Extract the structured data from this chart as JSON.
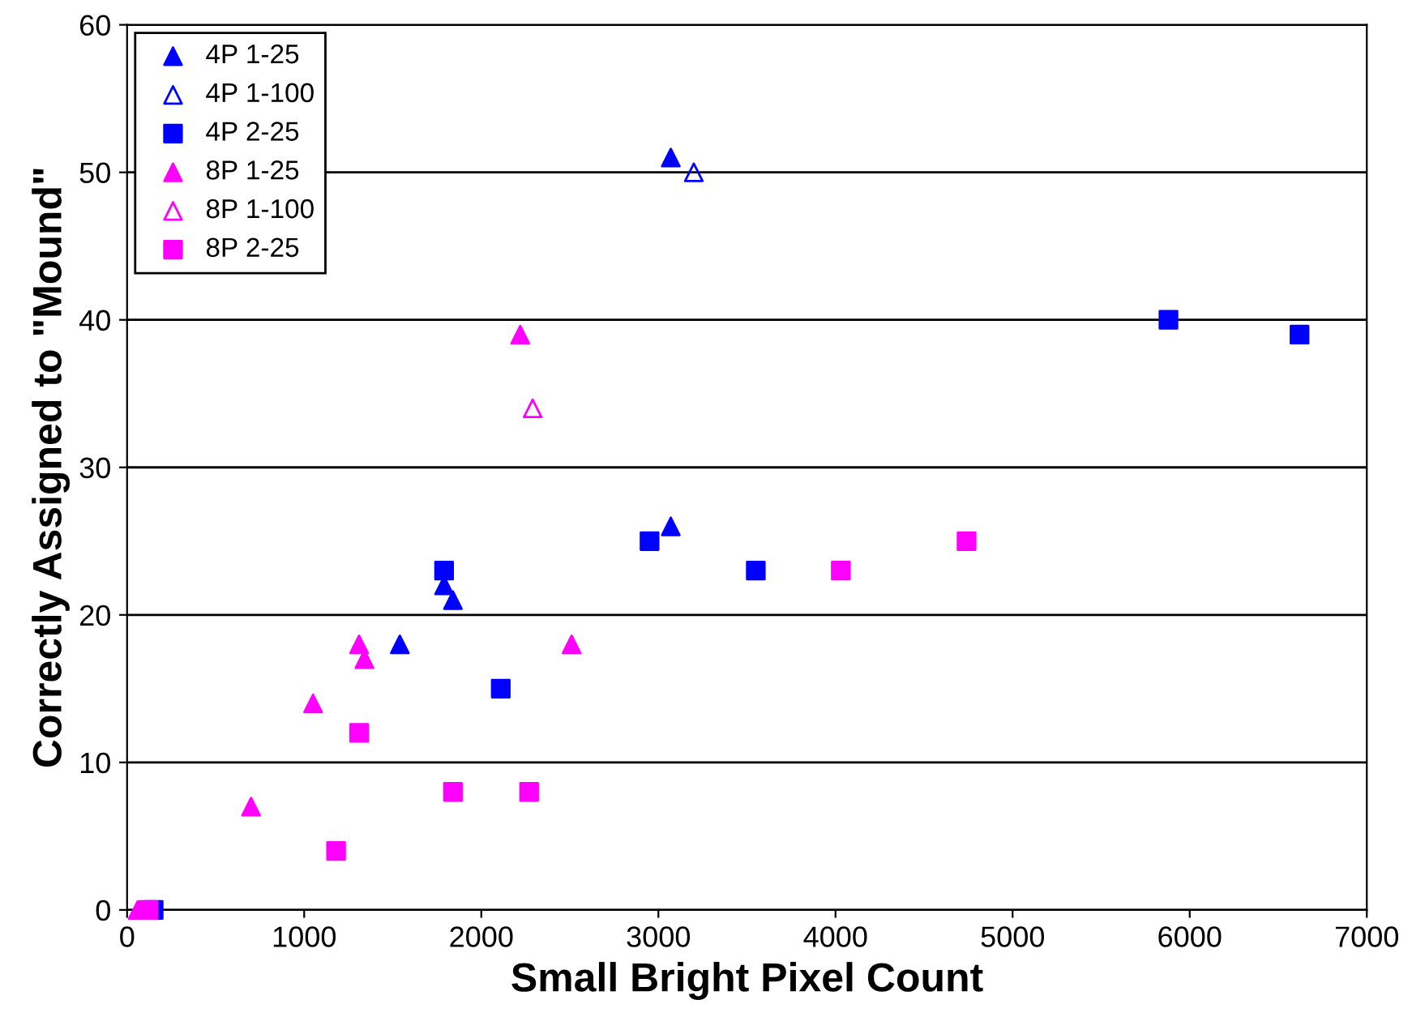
{
  "chart_data": {
    "type": "scatter",
    "xlabel": "Small Bright Pixel Count",
    "ylabel": "Correctly Assigned to \"Mound\"",
    "xlim": [
      0,
      7000
    ],
    "xticks": [
      0,
      1000,
      2000,
      3000,
      4000,
      5000,
      6000,
      7000
    ],
    "ylim": [
      0,
      60
    ],
    "yticks": [
      0,
      10,
      20,
      30,
      40,
      50,
      60
    ],
    "grid": "y",
    "legend": "top left",
    "series": [
      {
        "name": "4P 1-25",
        "color": "#0000ff",
        "marker": "triangle",
        "x": [
          3070,
          1540,
          1790,
          1840,
          3070
        ],
        "values": [
          51,
          18,
          22,
          21,
          26
        ]
      },
      {
        "name": "4P 1-100",
        "color": "#0000ff",
        "marker": "triangle_open",
        "x": [
          3200
        ],
        "values": [
          50
        ]
      },
      {
        "name": "4P 2-25",
        "color": "#0000ff",
        "marker": "square",
        "x": [
          5880,
          6620,
          1790,
          2950,
          3550,
          2110,
          150
        ],
        "values": [
          40,
          39,
          23,
          25,
          23,
          15,
          0
        ]
      },
      {
        "name": "8P 1-25",
        "color": "#ff00ff",
        "marker": "triangle",
        "x": [
          2220,
          1310,
          1340,
          1050,
          700,
          2510,
          60
        ],
        "values": [
          39,
          18,
          17,
          14,
          7,
          18,
          0
        ]
      },
      {
        "name": "8P 1-100",
        "color": "#ff00ff",
        "marker": "triangle_open",
        "x": [
          2290
        ],
        "values": [
          34
        ]
      },
      {
        "name": "8P 2-25",
        "color": "#ff00ff",
        "marker": "square",
        "x": [
          4030,
          4740,
          1310,
          1180,
          1840,
          2270,
          120
        ],
        "values": [
          23,
          25,
          12,
          4,
          8,
          8,
          0
        ]
      }
    ]
  }
}
